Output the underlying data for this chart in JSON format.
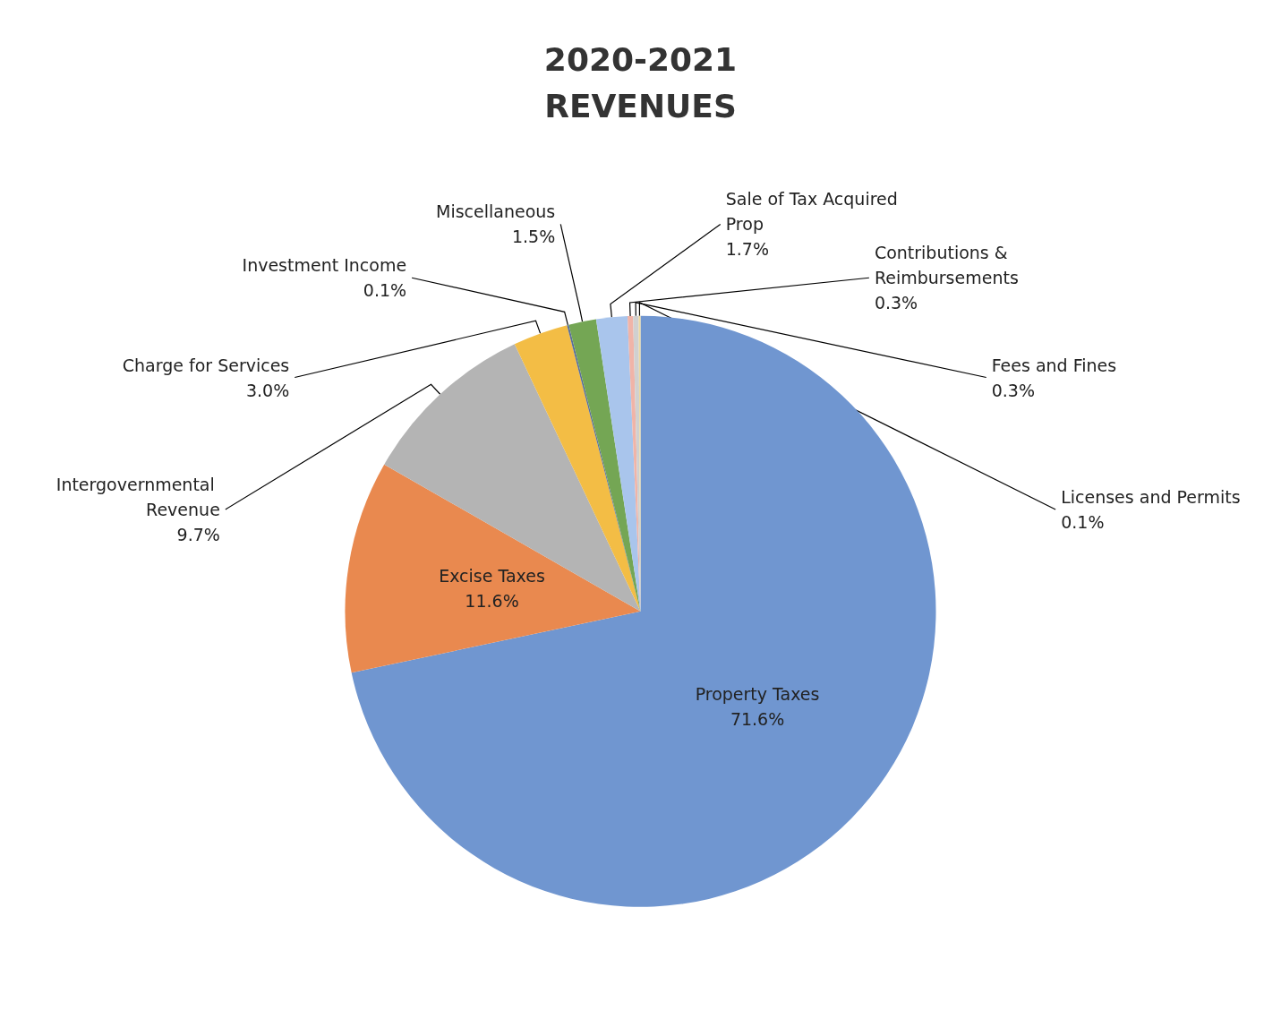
{
  "chart_data": {
    "type": "pie",
    "title": "2020-2021\nREVENUES",
    "categories": [
      "Property Taxes",
      "Excise Taxes",
      "Intergovernmental Revenue",
      "Charge for Services",
      "Investment Income",
      "Miscellaneous",
      "Sale of Tax Acquired Prop",
      "Contributions & Reimbursements",
      "Fees and Fines",
      "Licenses and Permits"
    ],
    "values": [
      71.6,
      11.6,
      9.7,
      3.0,
      0.1,
      1.5,
      1.7,
      0.3,
      0.3,
      0.1
    ],
    "value_labels": [
      "71.6%",
      "11.6%",
      "9.7%",
      "3.0%",
      "0.1%",
      "1.5%",
      "1.7%",
      "0.3%",
      "0.3%",
      "0.1%"
    ],
    "colors": [
      "#7096d0",
      "#e9894f",
      "#b4b4b4",
      "#f3bd45",
      "#5a6f9a",
      "#74a654",
      "#a9c5ec",
      "#f0b4a8",
      "#d0d0d0",
      "#eed9a0"
    ],
    "legend": false
  }
}
